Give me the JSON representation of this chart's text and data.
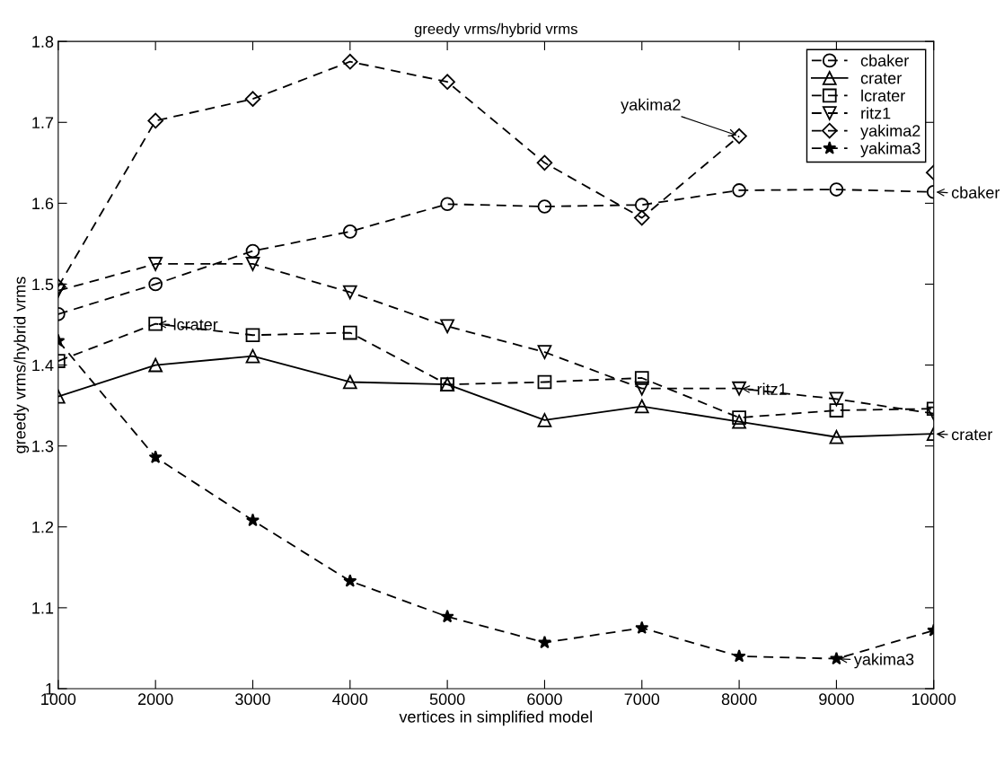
{
  "chart_data": {
    "type": "line",
    "title": "greedy vrms/hybrid vrms",
    "xlabel": "vertices in simplified model",
    "ylabel": "greedy vrms/hybrid vrms",
    "x": [
      1000,
      2000,
      3000,
      4000,
      5000,
      6000,
      7000,
      8000,
      9000,
      10000
    ],
    "series": [
      {
        "name": "cbaker",
        "color": "#000000",
        "marker": "circle",
        "line_style": "dashed",
        "values": [
          1.463,
          1.5,
          1.541,
          1.565,
          1.599,
          1.596,
          1.598,
          1.616,
          1.617,
          1.614
        ]
      },
      {
        "name": "crater",
        "color": "#000000",
        "marker": "triangle",
        "line_style": "solid",
        "values": [
          1.361,
          1.4,
          1.411,
          1.379,
          1.376,
          1.332,
          1.349,
          1.33,
          1.311,
          1.315
        ]
      },
      {
        "name": "lcrater",
        "color": "#000000",
        "marker": "square",
        "line_style": "dashed",
        "values": [
          1.405,
          1.451,
          1.437,
          1.44,
          1.376,
          1.379,
          1.384,
          1.335,
          1.344,
          1.346
        ]
      },
      {
        "name": "ritz1",
        "color": "#000000",
        "marker": "triangle_down",
        "line_style": "dashed",
        "values": [
          1.492,
          1.525,
          1.525,
          1.49,
          1.448,
          1.416,
          1.371,
          1.371,
          1.358,
          1.34
        ]
      },
      {
        "name": "yakima2",
        "color": "#000000",
        "marker": "diamond",
        "line_style": "dashed",
        "values": [
          1.497,
          1.702,
          1.729,
          1.775,
          1.75,
          1.65,
          1.582,
          1.683,
          null,
          1.638
        ]
      },
      {
        "name": "yakima3",
        "color": "#000000",
        "marker": "star",
        "line_style": "dashed",
        "values": [
          1.43,
          1.286,
          1.208,
          1.133,
          1.089,
          1.057,
          1.075,
          1.04,
          1.037,
          1.072
        ]
      }
    ],
    "annotations": [
      {
        "text": "cbaker",
        "x": 10000,
        "y": 1.614
      },
      {
        "text": "crater",
        "x": 10000,
        "y": 1.315
      },
      {
        "text": "lcrater",
        "x": 2000,
        "y": 1.451
      },
      {
        "text": "ritz1",
        "x": 8000,
        "y": 1.371
      },
      {
        "text": "yakima2",
        "x": 8000,
        "y": 1.683
      },
      {
        "text": "yakima3",
        "x": 9000,
        "y": 1.037
      }
    ],
    "xlim": [
      1000,
      10000
    ],
    "xticks": [
      1000,
      2000,
      3000,
      4000,
      5000,
      6000,
      7000,
      8000,
      9000,
      10000
    ],
    "ylim": [
      1,
      1.8
    ],
    "yticks": [
      1,
      1.1,
      1.2,
      1.3,
      1.4,
      1.5,
      1.6,
      1.7,
      1.8
    ],
    "grid": false,
    "legend": "top right"
  }
}
